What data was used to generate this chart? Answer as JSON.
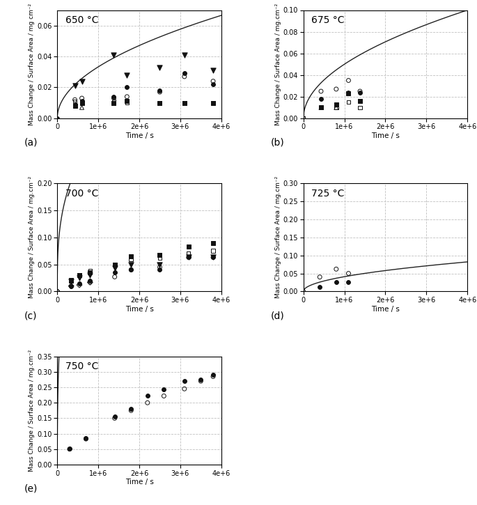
{
  "panels": [
    {
      "title": "650 °C",
      "label": "(a)",
      "ylim": [
        0,
        0.07
      ],
      "yticks": [
        0.0,
        0.02,
        0.04,
        0.06
      ],
      "curve": {
        "k": 3.33e-05,
        "n": 0.5
      },
      "scatter": [
        {
          "x": [
            0
          ],
          "y": [
            0.0
          ],
          "marker": "o",
          "filled": true,
          "size": 18
        },
        {
          "x": [
            430000,
            600000,
            1380000,
            1700000,
            2500000,
            3100000,
            3800000
          ],
          "y": [
            0.021,
            0.024,
            0.041,
            0.028,
            0.033,
            0.041,
            0.031
          ],
          "marker": "v",
          "filled": true,
          "size": 28
        },
        {
          "x": [
            430000,
            600000,
            1380000,
            1700000,
            2500000,
            3100000,
            3800000
          ],
          "y": [
            0.009,
            0.011,
            0.014,
            0.02,
            0.018,
            0.029,
            0.022
          ],
          "marker": "o",
          "filled": true,
          "size": 18
        },
        {
          "x": [
            430000,
            600000,
            1380000,
            1700000,
            2500000,
            3100000,
            3800000
          ],
          "y": [
            0.012,
            0.013,
            0.013,
            0.014,
            0.017,
            0.027,
            0.024
          ],
          "marker": "o",
          "filled": false,
          "size": 18
        },
        {
          "x": [
            430000,
            600000,
            1380000,
            1700000,
            2500000,
            3100000,
            3800000
          ],
          "y": [
            0.008,
            0.01,
            0.01,
            0.011,
            0.01,
            0.01,
            0.01
          ],
          "marker": "s",
          "filled": true,
          "size": 16
        },
        {
          "x": [
            430000,
            600000,
            1380000,
            1700000,
            2500000,
            3100000,
            3800000
          ],
          "y": [
            0.011,
            0.011,
            0.011,
            0.01,
            0.01,
            0.01,
            0.01
          ],
          "marker": "s",
          "filled": false,
          "size": 16
        },
        {
          "x": [
            600000
          ],
          "y": [
            0.007
          ],
          "marker": "^",
          "filled": false,
          "size": 18
        }
      ]
    },
    {
      "title": "675 °C",
      "label": "(b)",
      "ylim": [
        0,
        0.1
      ],
      "yticks": [
        0.0,
        0.02,
        0.04,
        0.06,
        0.08,
        0.1
      ],
      "curve": {
        "k": 5e-05,
        "n": 0.5
      },
      "scatter": [
        {
          "x": [
            0,
            430000,
            800000,
            1100000,
            1380000
          ],
          "y": [
            0.0,
            0.025,
            0.027,
            0.035,
            0.025
          ],
          "marker": "o",
          "filled": false,
          "size": 18
        },
        {
          "x": [
            430000,
            800000,
            1100000,
            1380000
          ],
          "y": [
            0.018,
            0.013,
            0.024,
            0.024
          ],
          "marker": "o",
          "filled": true,
          "size": 18
        },
        {
          "x": [
            430000,
            800000,
            1100000,
            1380000
          ],
          "y": [
            0.01,
            0.013,
            0.023,
            0.016
          ],
          "marker": "s",
          "filled": true,
          "size": 16
        },
        {
          "x": [
            0,
            430000,
            800000,
            1100000,
            1380000
          ],
          "y": [
            0.0,
            0.01,
            0.01,
            0.015,
            0.01
          ],
          "marker": "s",
          "filled": false,
          "size": 16
        },
        {
          "x": [
            430000,
            800000
          ],
          "y": [
            0.01,
            0.01
          ],
          "marker": "^",
          "filled": false,
          "size": 18
        }
      ]
    },
    {
      "title": "700 °C",
      "label": "(c)",
      "ylim": [
        0,
        0.2
      ],
      "yticks": [
        0.0,
        0.05,
        0.1,
        0.15,
        0.2
      ],
      "curve": {
        "k": 0.0027,
        "n": 0.34
      },
      "scatter": [
        {
          "x": [
            0,
            340000,
            800000,
            1400000,
            1800000,
            2500000,
            3200000,
            3800000
          ],
          "y": [
            0.0,
            0.01,
            0.017,
            0.027,
            0.04,
            0.045,
            0.063,
            0.063
          ],
          "marker": "o",
          "filled": false,
          "size": 18
        },
        {
          "x": [
            340000,
            540000,
            800000,
            1400000,
            1800000,
            2500000,
            3200000,
            3800000
          ],
          "y": [
            0.02,
            0.03,
            0.035,
            0.05,
            0.065,
            0.068,
            0.083,
            0.09
          ],
          "marker": "s",
          "filled": true,
          "size": 16
        },
        {
          "x": [
            340000,
            540000,
            800000,
            1400000,
            1800000,
            2500000,
            3200000,
            3800000
          ],
          "y": [
            0.022,
            0.03,
            0.038,
            0.05,
            0.06,
            0.062,
            0.07,
            0.075
          ],
          "marker": "s",
          "filled": false,
          "size": 16
        },
        {
          "x": [
            340000,
            540000,
            800000,
            1400000,
            1800000,
            2500000,
            3200000,
            3800000
          ],
          "y": [
            0.019,
            0.025,
            0.03,
            0.043,
            0.05,
            0.05,
            0.063,
            0.063
          ],
          "marker": "v",
          "filled": true,
          "size": 28
        },
        {
          "x": [
            340000,
            540000,
            800000,
            1400000,
            1800000,
            2500000,
            3200000,
            3800000
          ],
          "y": [
            0.01,
            0.015,
            0.02,
            0.035,
            0.04,
            0.04,
            0.063,
            0.063
          ],
          "marker": "o",
          "filled": true,
          "size": 18
        },
        {
          "x": [
            0,
            340000,
            540000,
            800000
          ],
          "y": [
            0.0,
            0.01,
            0.012,
            0.017
          ],
          "marker": "D",
          "filled": false,
          "size": 16
        }
      ]
    },
    {
      "title": "725 °C",
      "label": "(d)",
      "ylim": [
        0,
        0.3
      ],
      "yticks": [
        0.0,
        0.05,
        0.1,
        0.15,
        0.2,
        0.25,
        0.3
      ],
      "curve": {
        "k": 4.1e-05,
        "n": 0.5
      },
      "scatter": [
        {
          "x": [
            0,
            400000,
            800000,
            1100000
          ],
          "y": [
            0.0,
            0.04,
            0.062,
            0.05
          ],
          "marker": "o",
          "filled": false,
          "size": 18
        },
        {
          "x": [
            400000,
            800000,
            1100000
          ],
          "y": [
            0.012,
            0.025,
            0.025
          ],
          "marker": "o",
          "filled": true,
          "size": 18
        }
      ]
    },
    {
      "title": "750 °C",
      "label": "(e)",
      "ylim": [
        0,
        0.35
      ],
      "yticks": [
        0.0,
        0.05,
        0.1,
        0.15,
        0.2,
        0.25,
        0.3,
        0.35
      ],
      "curve": {
        "k": 0.004,
        "n": 0.42
      },
      "scatter": [
        {
          "x": [
            300000,
            700000,
            1400000,
            1800000,
            2200000,
            2600000,
            3100000,
            3500000,
            3800000
          ],
          "y": [
            0.05,
            0.083,
            0.15,
            0.175,
            0.2,
            0.222,
            0.245,
            0.27,
            0.285
          ],
          "marker": "o",
          "filled": false,
          "size": 18
        },
        {
          "x": [
            300000,
            700000,
            1400000,
            1800000,
            2200000,
            2600000,
            3100000,
            3500000,
            3800000
          ],
          "y": [
            0.052,
            0.085,
            0.155,
            0.18,
            0.223,
            0.243,
            0.27,
            0.275,
            0.29
          ],
          "marker": "o",
          "filled": true,
          "size": 18
        }
      ]
    }
  ],
  "xlabel": "Time / s",
  "ylabel_650": "Mass Change / Surface Area / mg cm⁻²",
  "ylabel_dot": "Mass Change / Surface Area / mg.cm⁻²",
  "xlim": [
    0,
    4000000.0
  ],
  "xticks": [
    0,
    1000000.0,
    2000000.0,
    3000000.0,
    4000000.0
  ],
  "xtick_labels": [
    "0",
    "1e+6",
    "2e+6",
    "3e+6",
    "4e+6"
  ],
  "grid_color": "#c0c0c0",
  "grid_style": "--",
  "curve_color": "#222222",
  "marker_color": "#111111"
}
